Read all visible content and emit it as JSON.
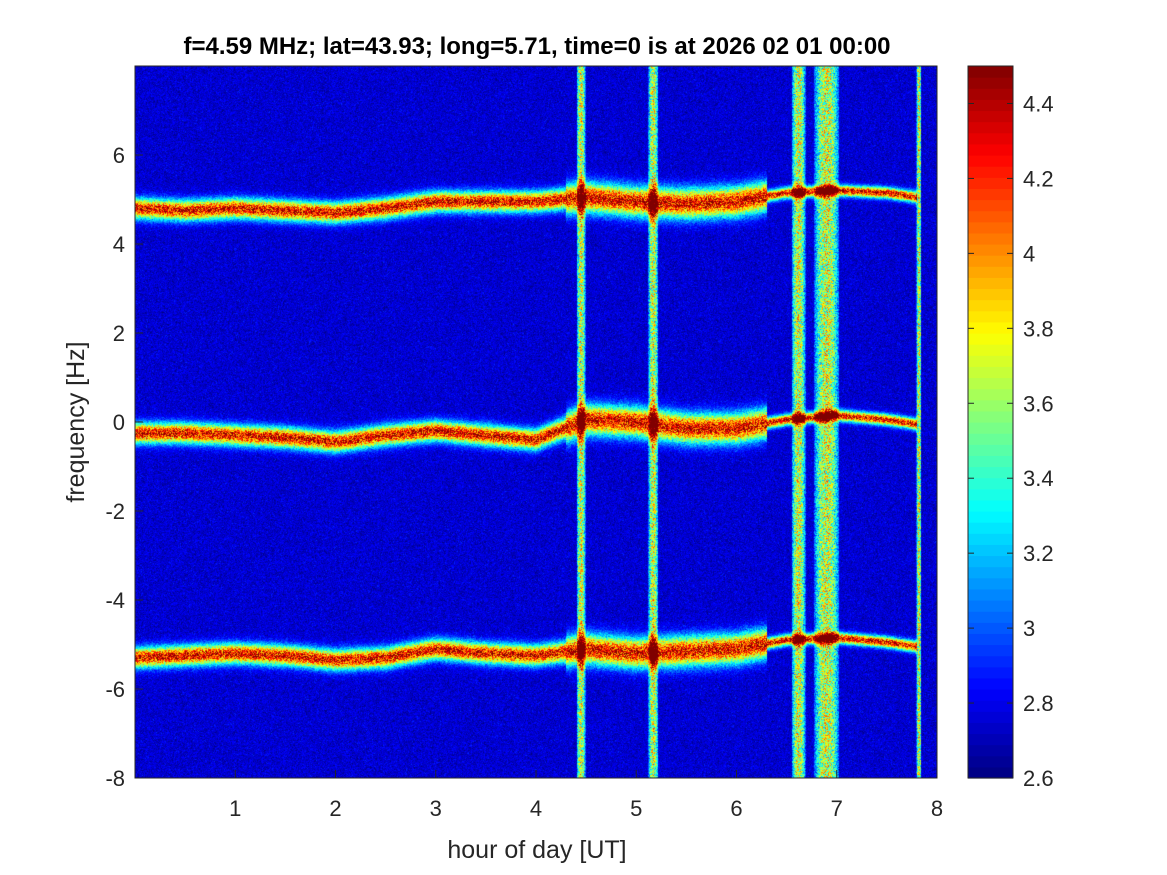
{
  "chart_data": {
    "type": "heatmap",
    "title": "f=4.59 MHz;  lat=43.93; long=5.71, time=0 is at 2026 02 01 00:00",
    "xlabel": "hour of day [UT]",
    "ylabel": "frequency [Hz]",
    "xlim": [
      0,
      8
    ],
    "ylim": [
      -8,
      8
    ],
    "x_ticks": [
      "1",
      "2",
      "3",
      "4",
      "5",
      "6",
      "7",
      "8"
    ],
    "y_ticks": [
      "-8",
      "-6",
      "-4",
      "-2",
      "0",
      "2",
      "4",
      "6"
    ],
    "colorbar": {
      "colormap": "jet",
      "range": [
        2.6,
        4.5
      ],
      "ticks": [
        "2.6",
        "2.8",
        "3",
        "3.2",
        "3.4",
        "3.6",
        "3.8",
        "4",
        "4.2",
        "4.4"
      ]
    },
    "traces": [
      {
        "description": "upper sideband trace",
        "points": [
          [
            0,
            4.8
          ],
          [
            0.5,
            4.75
          ],
          [
            1,
            4.8
          ],
          [
            1.5,
            4.75
          ],
          [
            2,
            4.7
          ],
          [
            2.5,
            4.8
          ],
          [
            3,
            4.95
          ],
          [
            3.5,
            4.95
          ],
          [
            4,
            4.95
          ],
          [
            4.5,
            5.05
          ],
          [
            5,
            4.95
          ],
          [
            5.5,
            4.9
          ],
          [
            6,
            4.95
          ],
          [
            6.5,
            5.15
          ],
          [
            7,
            5.2
          ],
          [
            7.5,
            5.15
          ],
          [
            7.8,
            5.05
          ]
        ]
      },
      {
        "description": "central (zero Doppler) trace",
        "points": [
          [
            0,
            -0.25
          ],
          [
            0.5,
            -0.25
          ],
          [
            1,
            -0.3
          ],
          [
            1.5,
            -0.35
          ],
          [
            2,
            -0.45
          ],
          [
            2.5,
            -0.3
          ],
          [
            3,
            -0.2
          ],
          [
            3.5,
            -0.3
          ],
          [
            4,
            -0.4
          ],
          [
            4.5,
            0.05
          ],
          [
            5,
            0.0
          ],
          [
            5.5,
            -0.15
          ],
          [
            6,
            -0.15
          ],
          [
            6.5,
            0.05
          ],
          [
            7,
            0.15
          ],
          [
            7.5,
            0.05
          ],
          [
            7.8,
            -0.05
          ]
        ]
      },
      {
        "description": "lower sideband trace",
        "points": [
          [
            0,
            -5.3
          ],
          [
            0.5,
            -5.25
          ],
          [
            1,
            -5.2
          ],
          [
            1.5,
            -5.25
          ],
          [
            2,
            -5.35
          ],
          [
            2.5,
            -5.3
          ],
          [
            3,
            -5.1
          ],
          [
            3.5,
            -5.2
          ],
          [
            4,
            -5.25
          ],
          [
            4.5,
            -5.1
          ],
          [
            5,
            -5.2
          ],
          [
            5.5,
            -5.15
          ],
          [
            6,
            -5.1
          ],
          [
            6.5,
            -4.9
          ],
          [
            7,
            -4.85
          ],
          [
            7.5,
            -4.95
          ],
          [
            7.8,
            -5.05
          ]
        ]
      }
    ],
    "vertical_bands": [
      {
        "center": 4.45,
        "width": 0.09
      },
      {
        "center": 5.17,
        "width": 0.1
      },
      {
        "center": 6.62,
        "width": 0.14
      },
      {
        "center": 6.9,
        "width": 0.25
      },
      {
        "center": 7.82,
        "width": 0.05
      }
    ],
    "background_level": 2.75
  }
}
